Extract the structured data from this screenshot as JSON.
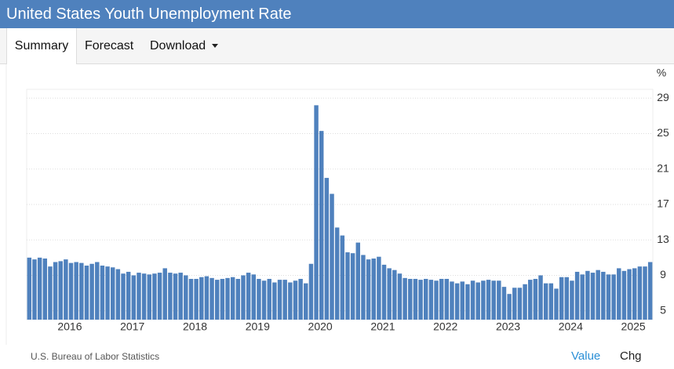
{
  "page": {
    "title": "United States Youth Unemployment Rate",
    "tabs": [
      "Summary",
      "Forecast",
      "Download"
    ],
    "source": "U.S. Bureau of Labor Statistics",
    "footer_links": [
      "Value",
      "Chg"
    ]
  },
  "chart_data": {
    "type": "bar",
    "unit": "%",
    "color": "#4f81bd",
    "grid": true,
    "ylim": [
      4,
      30
    ],
    "yticks": [
      5,
      9,
      13,
      17,
      21,
      25,
      29
    ],
    "categories": [
      null,
      null,
      null,
      null,
      "2016",
      null,
      null,
      null,
      null,
      null,
      null,
      null,
      null,
      null,
      null,
      null,
      "2017",
      null,
      null,
      null,
      null,
      null,
      null,
      null,
      null,
      null,
      null,
      null,
      "2018",
      null,
      null,
      null,
      null,
      null,
      null,
      null,
      null,
      null,
      null,
      null,
      "2019",
      null,
      null,
      null,
      null,
      null,
      null,
      null,
      null,
      null,
      null,
      null,
      "2020",
      null,
      null,
      null,
      null,
      null,
      null,
      null,
      null,
      null,
      null,
      null,
      "2021",
      null,
      null,
      null,
      null,
      null,
      null,
      null,
      null,
      null,
      null,
      null,
      "2022",
      null,
      null,
      null,
      null,
      null,
      null,
      null,
      null,
      null,
      null,
      null,
      "2023",
      null,
      null,
      null,
      null,
      null,
      null,
      null,
      null,
      null,
      null,
      null,
      "2024",
      null,
      null,
      null,
      null,
      null,
      null,
      null,
      null,
      null,
      null,
      null,
      "2025",
      null,
      null,
      null,
      null,
      null,
      null,
      null
    ],
    "values": [
      11.0,
      10.8,
      11.0,
      10.9,
      10.0,
      10.5,
      10.6,
      10.8,
      10.4,
      10.5,
      10.4,
      10.1,
      10.3,
      10.5,
      10.1,
      10.0,
      9.9,
      9.7,
      9.2,
      9.4,
      9.0,
      9.3,
      9.2,
      9.1,
      9.2,
      9.3,
      9.8,
      9.3,
      9.2,
      9.3,
      9.0,
      8.6,
      8.6,
      8.8,
      8.9,
      8.7,
      8.5,
      8.6,
      8.7,
      8.8,
      8.6,
      9.0,
      9.3,
      9.1,
      8.6,
      8.4,
      8.6,
      8.2,
      8.5,
      8.5,
      8.2,
      8.4,
      8.6,
      8.1,
      10.3,
      28.2,
      25.3,
      20.0,
      18.2,
      14.4,
      13.5,
      11.6,
      11.5,
      12.7,
      11.3,
      10.8,
      10.9,
      11.1,
      10.2,
      9.8,
      9.6,
      9.2,
      8.7,
      8.6,
      8.6,
      8.5,
      8.6,
      8.5,
      8.4,
      8.6,
      8.6,
      8.3,
      8.1,
      8.3,
      8.0,
      8.4,
      8.2,
      8.4,
      8.5,
      8.4,
      8.4,
      7.7,
      6.9,
      7.6,
      7.6,
      8.0,
      8.5,
      8.6,
      9.0,
      8.1,
      8.1,
      7.5,
      8.8,
      8.8,
      8.4,
      9.4,
      9.1,
      9.5,
      9.3,
      9.6,
      9.4,
      9.1,
      9.1,
      9.8,
      9.5,
      9.7,
      9.8,
      10.0,
      10.0,
      10.5
    ]
  }
}
